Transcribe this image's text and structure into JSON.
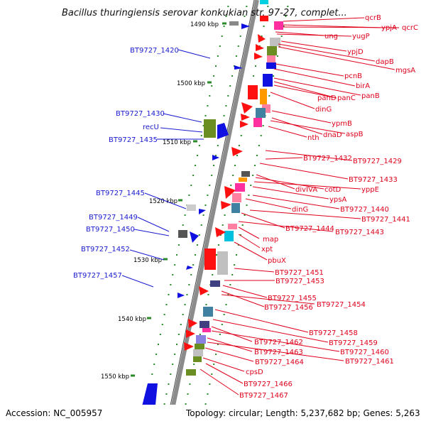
{
  "title": "Bacillus thuringiensis serovar konkukian str. 97-27, complet...",
  "footer": {
    "accession": "Accession: NC_005957",
    "topology": "Topology: circular; Length: 5,237,682 bp; Genes: 5,263"
  },
  "colors": {
    "backbone": "#8c8c8c",
    "label_left": "#1a1ad0",
    "label_right": "#e0001b",
    "dot": "#2a8a2a",
    "blue_gene": "#1010e0",
    "red_gene": "#ff1010"
  },
  "scale_labels": [
    "1490 kbp",
    "1500 kbp",
    "1510 kbp",
    "1520 kbp",
    "1530 kbp",
    "1540 kbp",
    "1550 kbp"
  ],
  "left_labels": [
    "BT9727_1420",
    "BT9727_1430",
    "recU",
    "BT9727_1435",
    "BT9727_1445",
    "BT9727_1449",
    "BT9727_1450",
    "BT9727_1452",
    "BT9727_1457"
  ],
  "right_labels": [
    "qcrB",
    "ypjA",
    "qcrC",
    "ung",
    "yugP",
    "ypjD",
    "dapB",
    "mgsA",
    "pcnB",
    "birA",
    "panB",
    "panD",
    "panC",
    "dinG",
    "ypmB",
    "dnaD",
    "aspB",
    "nth",
    "BT9727_1432",
    "BT9727_1429",
    "BT9727_1433",
    "divIVA",
    "cotD",
    "yppE",
    "ypsA",
    "BT9727_1440",
    "dinG",
    "BT9727_1441",
    "BT9727_1444",
    "BT9727_1443",
    "map",
    "xpt",
    "pbuX",
    "BT9727_1451",
    "BT9727_1453",
    "BT9727_1455",
    "BT9727_1456",
    "BT9727_1454",
    "BT9727_1458",
    "BT9727_1459",
    "BT9727_1462",
    "BT9727_1460",
    "BT9727_1463",
    "BT9727_1461",
    "BT9727_1464",
    "cpsD",
    "BT9727_1466",
    "BT9727_1467"
  ]
}
